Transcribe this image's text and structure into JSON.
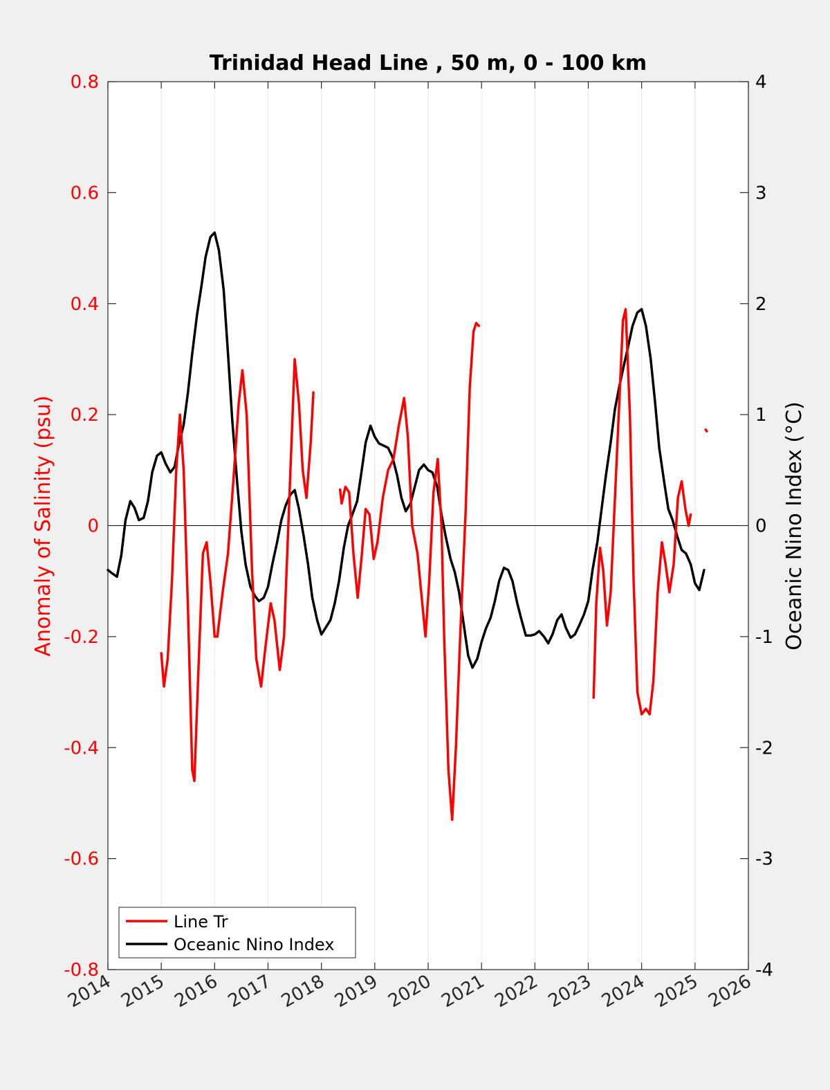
{
  "chart_data": {
    "type": "line",
    "title": "Trinidad Head Line , 50 m, 0 - 100 km",
    "xlabel": "",
    "ylabel_left": "Anomaly of Salinity (psu)",
    "ylabel_right": "Oceanic Nino Index (°C)",
    "xlim": [
      2014,
      2026
    ],
    "ylim_left": [
      -0.8,
      0.8
    ],
    "ylim_right": [
      -4,
      4
    ],
    "x_ticks": [
      "2014",
      "2015",
      "2016",
      "2017",
      "2018",
      "2019",
      "2020",
      "2021",
      "2022",
      "2023",
      "2024",
      "2025",
      "2026"
    ],
    "y_left_ticks": [
      "-0.8",
      "-0.6",
      "-0.4",
      "-0.2",
      "0",
      "0.2",
      "0.4",
      "0.6",
      "0.8"
    ],
    "y_right_ticks": [
      "-4",
      "-3",
      "-2",
      "-1",
      "0",
      "1",
      "2",
      "3",
      "4"
    ],
    "x_grid": true,
    "zero_line": true,
    "left_axis_color": "#ff0000",
    "right_axis_color": "#000000",
    "legend_position": "bottom-left",
    "series": [
      {
        "name": "Line Tr",
        "axis": "left",
        "color": "#ff0000",
        "segments": [
          [
            [
              2015.0,
              -0.23
            ],
            [
              2015.05,
              -0.29
            ],
            [
              2015.12,
              -0.24
            ],
            [
              2015.2,
              -0.1
            ],
            [
              2015.28,
              0.1
            ],
            [
              2015.35,
              0.2
            ],
            [
              2015.42,
              0.1
            ],
            [
              2015.5,
              -0.15
            ],
            [
              2015.58,
              -0.44
            ],
            [
              2015.62,
              -0.46
            ],
            [
              2015.7,
              -0.25
            ],
            [
              2015.78,
              -0.05
            ],
            [
              2015.85,
              -0.03
            ],
            [
              2015.92,
              -0.1
            ],
            [
              2016.0,
              -0.2
            ],
            [
              2016.05,
              -0.2
            ],
            [
              2016.15,
              -0.12
            ],
            [
              2016.25,
              -0.05
            ],
            [
              2016.35,
              0.08
            ],
            [
              2016.45,
              0.22
            ],
            [
              2016.52,
              0.28
            ],
            [
              2016.6,
              0.2
            ],
            [
              2016.7,
              -0.08
            ],
            [
              2016.78,
              -0.24
            ],
            [
              2016.87,
              -0.29
            ],
            [
              2016.95,
              -0.22
            ],
            [
              2017.05,
              -0.14
            ],
            [
              2017.12,
              -0.17
            ],
            [
              2017.22,
              -0.26
            ],
            [
              2017.3,
              -0.2
            ],
            [
              2017.4,
              0.05
            ],
            [
              2017.5,
              0.3
            ],
            [
              2017.58,
              0.22
            ],
            [
              2017.65,
              0.1
            ],
            [
              2017.72,
              0.05
            ],
            [
              2017.8,
              0.15
            ],
            [
              2017.85,
              0.24
            ]
          ],
          [
            [
              2018.35,
              0.065
            ],
            [
              2018.38,
              0.04
            ],
            [
              2018.45,
              0.07
            ],
            [
              2018.52,
              0.06
            ],
            [
              2018.6,
              -0.05
            ],
            [
              2018.68,
              -0.13
            ],
            [
              2018.75,
              -0.06
            ],
            [
              2018.83,
              0.03
            ],
            [
              2018.9,
              0.02
            ],
            [
              2018.98,
              -0.06
            ],
            [
              2019.05,
              -0.03
            ],
            [
              2019.15,
              0.05
            ],
            [
              2019.25,
              0.1
            ],
            [
              2019.35,
              0.12
            ],
            [
              2019.45,
              0.18
            ],
            [
              2019.55,
              0.23
            ],
            [
              2019.62,
              0.16
            ],
            [
              2019.7,
              0.0
            ],
            [
              2019.8,
              -0.05
            ],
            [
              2019.88,
              -0.13
            ],
            [
              2019.95,
              -0.2
            ],
            [
              2020.02,
              -0.1
            ],
            [
              2020.1,
              0.06
            ],
            [
              2020.18,
              0.12
            ],
            [
              2020.25,
              0.0
            ],
            [
              2020.3,
              -0.2
            ],
            [
              2020.38,
              -0.44
            ],
            [
              2020.45,
              -0.53
            ],
            [
              2020.52,
              -0.4
            ],
            [
              2020.6,
              -0.2
            ],
            [
              2020.7,
              0.02
            ],
            [
              2020.78,
              0.25
            ],
            [
              2020.85,
              0.35
            ],
            [
              2020.9,
              0.365
            ],
            [
              2020.95,
              0.36
            ]
          ],
          [
            [
              2023.1,
              -0.31
            ],
            [
              2023.15,
              -0.14
            ],
            [
              2023.22,
              -0.04
            ],
            [
              2023.28,
              -0.08
            ],
            [
              2023.35,
              -0.18
            ],
            [
              2023.42,
              -0.12
            ],
            [
              2023.5,
              0.05
            ],
            [
              2023.58,
              0.22
            ],
            [
              2023.65,
              0.37
            ],
            [
              2023.7,
              0.39
            ],
            [
              2023.78,
              0.2
            ],
            [
              2023.85,
              -0.1
            ],
            [
              2023.92,
              -0.3
            ],
            [
              2024.0,
              -0.34
            ],
            [
              2024.08,
              -0.33
            ],
            [
              2024.15,
              -0.34
            ],
            [
              2024.22,
              -0.28
            ],
            [
              2024.3,
              -0.12
            ],
            [
              2024.38,
              -0.03
            ],
            [
              2024.45,
              -0.07
            ],
            [
              2024.52,
              -0.12
            ],
            [
              2024.6,
              -0.07
            ],
            [
              2024.68,
              0.05
            ],
            [
              2024.75,
              0.08
            ],
            [
              2024.82,
              0.03
            ],
            [
              2024.88,
              0.0
            ],
            [
              2024.92,
              0.02
            ]
          ],
          [
            [
              2025.2,
              0.173
            ],
            [
              2025.22,
              0.17
            ]
          ]
        ]
      },
      {
        "name": "Oceanic Nino Index",
        "axis": "right",
        "color": "#000000",
        "segments": [
          [
            [
              2014.0,
              -0.4
            ],
            [
              2014.08,
              -0.43
            ],
            [
              2014.17,
              -0.46
            ],
            [
              2014.25,
              -0.27
            ],
            [
              2014.33,
              0.05
            ],
            [
              2014.42,
              0.22
            ],
            [
              2014.5,
              0.16
            ],
            [
              2014.58,
              0.05
            ],
            [
              2014.67,
              0.07
            ],
            [
              2014.75,
              0.22
            ],
            [
              2014.83,
              0.48
            ],
            [
              2014.92,
              0.63
            ],
            [
              2015.0,
              0.66
            ],
            [
              2015.08,
              0.56
            ],
            [
              2015.17,
              0.48
            ],
            [
              2015.25,
              0.53
            ],
            [
              2015.33,
              0.73
            ],
            [
              2015.42,
              0.91
            ],
            [
              2015.5,
              1.2
            ],
            [
              2015.58,
              1.55
            ],
            [
              2015.67,
              1.9
            ],
            [
              2015.75,
              2.15
            ],
            [
              2015.83,
              2.42
            ],
            [
              2015.92,
              2.6
            ],
            [
              2016.0,
              2.64
            ],
            [
              2016.08,
              2.48
            ],
            [
              2016.17,
              2.12
            ],
            [
              2016.25,
              1.55
            ],
            [
              2016.33,
              0.95
            ],
            [
              2016.42,
              0.4
            ],
            [
              2016.5,
              -0.05
            ],
            [
              2016.58,
              -0.35
            ],
            [
              2016.67,
              -0.55
            ],
            [
              2016.75,
              -0.63
            ],
            [
              2016.83,
              -0.68
            ],
            [
              2016.92,
              -0.65
            ],
            [
              2017.0,
              -0.55
            ],
            [
              2017.08,
              -0.35
            ],
            [
              2017.17,
              -0.15
            ],
            [
              2017.25,
              0.05
            ],
            [
              2017.33,
              0.18
            ],
            [
              2017.42,
              0.28
            ],
            [
              2017.5,
              0.32
            ],
            [
              2017.58,
              0.15
            ],
            [
              2017.67,
              -0.1
            ],
            [
              2017.75,
              -0.35
            ],
            [
              2017.83,
              -0.65
            ],
            [
              2017.92,
              -0.85
            ],
            [
              2018.0,
              -0.98
            ],
            [
              2018.08,
              -0.92
            ],
            [
              2018.17,
              -0.85
            ],
            [
              2018.25,
              -0.7
            ],
            [
              2018.33,
              -0.5
            ],
            [
              2018.42,
              -0.2
            ],
            [
              2018.5,
              0.0
            ],
            [
              2018.58,
              0.1
            ],
            [
              2018.67,
              0.22
            ],
            [
              2018.75,
              0.48
            ],
            [
              2018.83,
              0.75
            ],
            [
              2018.92,
              0.9
            ],
            [
              2019.0,
              0.8
            ],
            [
              2019.08,
              0.74
            ],
            [
              2019.17,
              0.72
            ],
            [
              2019.25,
              0.7
            ],
            [
              2019.33,
              0.62
            ],
            [
              2019.42,
              0.45
            ],
            [
              2019.5,
              0.25
            ],
            [
              2019.58,
              0.13
            ],
            [
              2019.67,
              0.2
            ],
            [
              2019.75,
              0.35
            ],
            [
              2019.83,
              0.5
            ],
            [
              2019.92,
              0.55
            ],
            [
              2020.0,
              0.5
            ],
            [
              2020.08,
              0.48
            ],
            [
              2020.17,
              0.35
            ],
            [
              2020.25,
              0.1
            ],
            [
              2020.33,
              -0.1
            ],
            [
              2020.42,
              -0.3
            ],
            [
              2020.5,
              -0.42
            ],
            [
              2020.58,
              -0.6
            ],
            [
              2020.67,
              -0.9
            ],
            [
              2020.75,
              -1.17
            ],
            [
              2020.83,
              -1.28
            ],
            [
              2020.92,
              -1.2
            ],
            [
              2021.0,
              -1.05
            ],
            [
              2021.08,
              -0.93
            ],
            [
              2021.17,
              -0.83
            ],
            [
              2021.25,
              -0.68
            ],
            [
              2021.33,
              -0.5
            ],
            [
              2021.42,
              -0.38
            ],
            [
              2021.5,
              -0.4
            ],
            [
              2021.58,
              -0.5
            ],
            [
              2021.67,
              -0.7
            ],
            [
              2021.75,
              -0.85
            ],
            [
              2021.83,
              -0.99
            ],
            [
              2021.92,
              -0.99
            ],
            [
              2022.0,
              -0.98
            ],
            [
              2022.08,
              -0.95
            ],
            [
              2022.17,
              -1.0
            ],
            [
              2022.25,
              -1.06
            ],
            [
              2022.33,
              -0.98
            ],
            [
              2022.42,
              -0.85
            ],
            [
              2022.5,
              -0.8
            ],
            [
              2022.58,
              -0.92
            ],
            [
              2022.67,
              -1.01
            ],
            [
              2022.75,
              -0.98
            ],
            [
              2022.83,
              -0.9
            ],
            [
              2022.92,
              -0.8
            ],
            [
              2023.0,
              -0.68
            ],
            [
              2023.08,
              -0.4
            ],
            [
              2023.17,
              -0.15
            ],
            [
              2023.25,
              0.15
            ],
            [
              2023.33,
              0.45
            ],
            [
              2023.42,
              0.75
            ],
            [
              2023.5,
              1.05
            ],
            [
              2023.58,
              1.25
            ],
            [
              2023.67,
              1.45
            ],
            [
              2023.75,
              1.62
            ],
            [
              2023.83,
              1.8
            ],
            [
              2023.92,
              1.92
            ],
            [
              2024.0,
              1.95
            ],
            [
              2024.08,
              1.8
            ],
            [
              2024.17,
              1.5
            ],
            [
              2024.25,
              1.12
            ],
            [
              2024.33,
              0.7
            ],
            [
              2024.42,
              0.4
            ],
            [
              2024.5,
              0.15
            ],
            [
              2024.58,
              0.05
            ],
            [
              2024.67,
              -0.1
            ],
            [
              2024.75,
              -0.22
            ],
            [
              2024.83,
              -0.25
            ],
            [
              2024.92,
              -0.35
            ],
            [
              2025.0,
              -0.52
            ],
            [
              2025.08,
              -0.58
            ],
            [
              2025.17,
              -0.4
            ]
          ]
        ]
      }
    ]
  }
}
